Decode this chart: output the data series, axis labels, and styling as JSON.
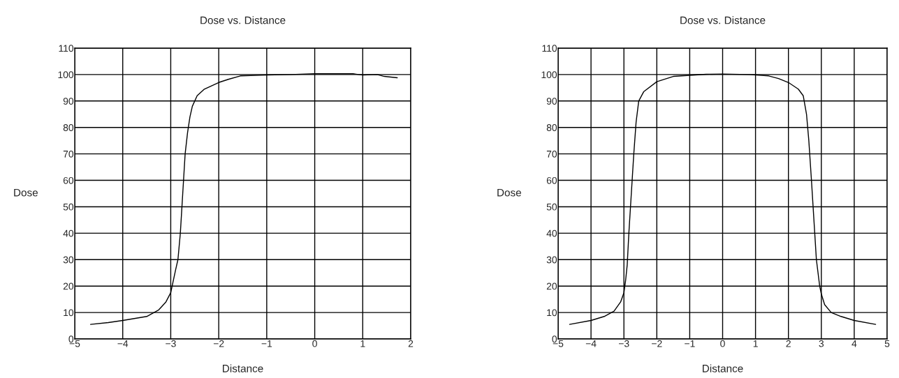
{
  "chart_data": [
    {
      "type": "line",
      "title": "Dose vs. Distance",
      "xlabel": "Distance",
      "ylabel": "Dose",
      "xlim": [
        -5,
        2
      ],
      "xticks": [
        -5,
        -4,
        -3,
        -2,
        -1,
        0,
        1,
        2
      ],
      "ylim": [
        0,
        110
      ],
      "yticks": [
        0,
        10,
        20,
        30,
        40,
        50,
        60,
        70,
        80,
        90,
        100,
        110
      ],
      "grid": true,
      "x": [
        -4.67,
        -4.3,
        -4,
        -3.5,
        -3.25,
        -3.1,
        -3,
        -2.9,
        -2.85,
        -2.8,
        -2.75,
        -2.7,
        -2.65,
        -2.6,
        -2.55,
        -2.45,
        -2.3,
        -2,
        -1.8,
        -1.55,
        -1,
        -0.5,
        0,
        0.8,
        1,
        1.3,
        1.45,
        1.72
      ],
      "series": [
        {
          "color": "#000000",
          "values": [
            5.5,
            6.2,
            7,
            8.5,
            11,
            14,
            17.5,
            26,
            30,
            40,
            55,
            70,
            78,
            84,
            88,
            92,
            94.5,
            97,
            98.2,
            99.5,
            99.8,
            100,
            100.3,
            100.3,
            99.8,
            100,
            99.3,
            98.8
          ]
        }
      ]
    },
    {
      "type": "line",
      "title": "Dose vs. Distance",
      "xlabel": "Distance",
      "ylabel": "Dose",
      "xlim": [
        -5,
        5
      ],
      "xticks": [
        -5,
        -4,
        -3,
        -2,
        -1,
        0,
        1,
        2,
        3,
        4,
        5
      ],
      "ylim": [
        0,
        110
      ],
      "yticks": [
        0,
        10,
        20,
        30,
        40,
        50,
        60,
        70,
        80,
        90,
        100,
        110
      ],
      "grid": true,
      "x": [
        -4.65,
        -4,
        -3.6,
        -3.3,
        -3.1,
        -3,
        -2.95,
        -2.9,
        -2.85,
        -2.8,
        -2.75,
        -2.7,
        -2.63,
        -2.55,
        -2.4,
        -2,
        -1.5,
        -1,
        -0.5,
        0,
        0.8,
        1.4,
        1.7,
        2,
        2.3,
        2.45,
        2.55,
        2.62,
        2.7,
        2.8,
        2.85,
        2.95,
        3,
        3.1,
        3.3,
        3.6,
        4,
        4.65
      ],
      "series": [
        {
          "color": "#000000",
          "values": [
            5.5,
            7,
            8.5,
            10.5,
            14,
            17.5,
            22,
            28,
            40,
            50,
            60,
            70,
            82,
            90,
            93.5,
            97.3,
            99.3,
            99.7,
            100.1,
            100.2,
            100,
            99.5,
            98.5,
            97,
            94.5,
            92,
            85,
            75,
            60,
            40,
            30,
            20,
            17,
            13,
            10,
            8.5,
            7,
            5.5
          ]
        }
      ]
    }
  ]
}
